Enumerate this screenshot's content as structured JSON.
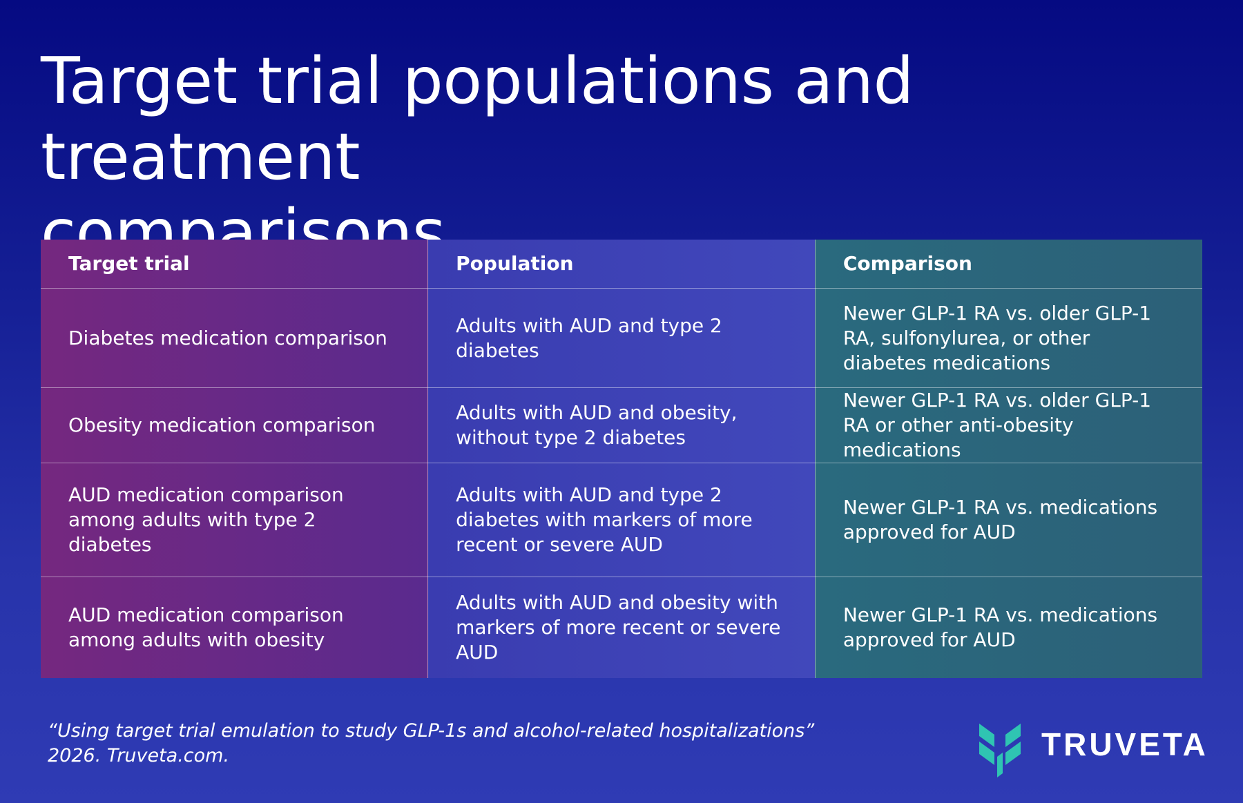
{
  "title": {
    "line1": "Target trial populations and treatment",
    "line2": "comparisons"
  },
  "table": {
    "headers": [
      "Target trial",
      "Population",
      "Comparison"
    ],
    "rows": [
      [
        "Diabetes medication comparison",
        "Adults with AUD and type 2 diabetes",
        "Newer GLP-1 RA vs. older GLP-1 RA, sulfonylurea, or other diabetes medications"
      ],
      [
        "Obesity medication comparison",
        "Adults with AUD and obesity, without type 2 diabetes",
        "Newer GLP-1 RA vs. older GLP-1 RA or other anti-obesity medications"
      ],
      [
        "AUD medication comparison among adults with type 2 diabetes",
        "Adults with AUD and type 2 diabetes with markers of more recent or severe AUD",
        "Newer GLP-1 RA vs. medications approved for AUD"
      ],
      [
        "AUD medication comparison among adults with obesity",
        "Adults with AUD and obesity with markers of more recent or severe AUD",
        "Newer GLP-1 RA vs. medications approved for AUD"
      ]
    ]
  },
  "citation": {
    "line1": "“Using target trial emulation to study GLP-1s and alcohol-related hospitalizations”",
    "line2": "2026. Truveta.com."
  },
  "logo": {
    "text": "TRUVETA",
    "icon": "truveta-logo-icon",
    "color": "#2fc4b2"
  },
  "colors": {
    "background_top": "#050a82",
    "background_bottom": "#2f3bb4",
    "column_trial": "#75287f",
    "column_population": "#3a3cb0",
    "column_comparison": "#2a6a7e"
  }
}
